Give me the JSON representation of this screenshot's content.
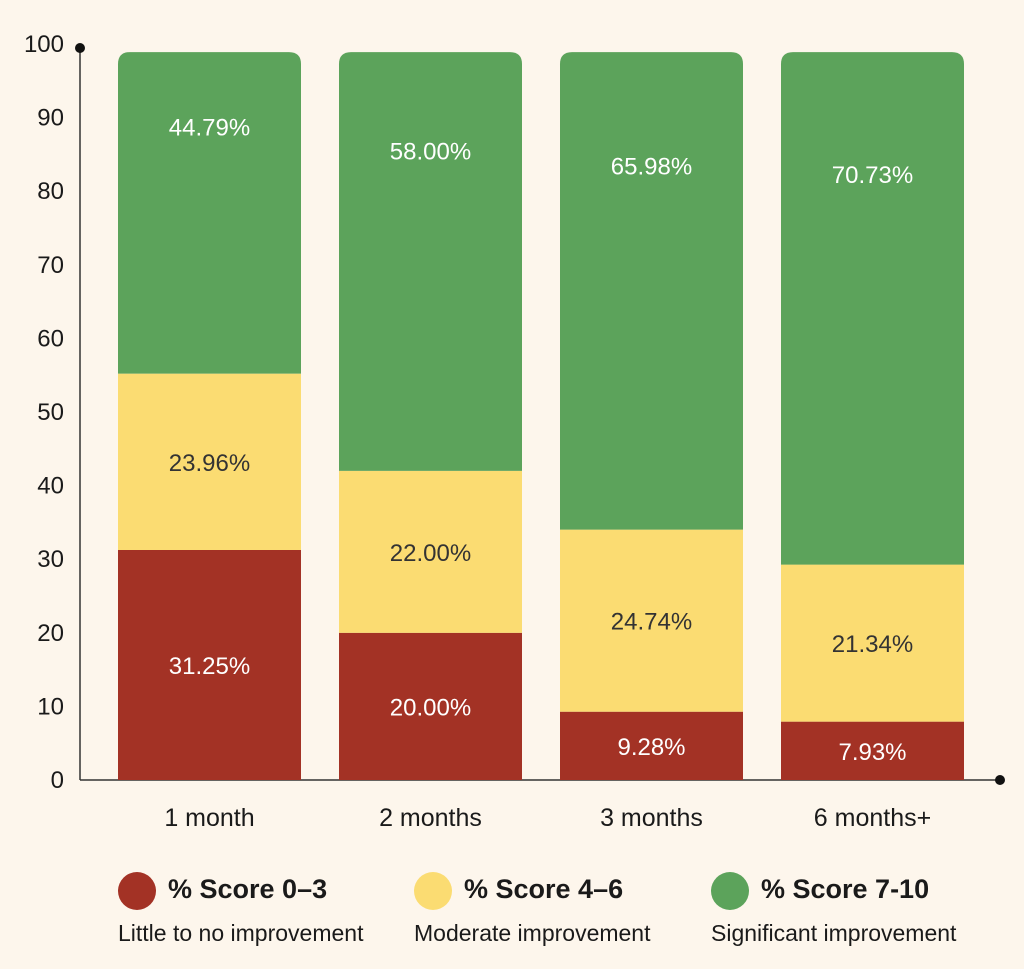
{
  "chart_data": {
    "type": "bar",
    "stacked": true,
    "categories": [
      "1 month",
      "2 months",
      "3 months",
      "6 months+"
    ],
    "series": [
      {
        "name": "% Score 0–3",
        "description": "Little to no improvement",
        "color": "#a33225",
        "label_color": "#ffffff",
        "values": [
          31.25,
          20.0,
          9.28,
          7.93
        ],
        "labels": [
          "31.25%",
          "20.00%",
          "9.28%",
          "7.93%"
        ]
      },
      {
        "name": "% Score 4–6",
        "description": "Moderate improvement",
        "color": "#fbdc72",
        "label_color": "#333333",
        "values": [
          23.96,
          22.0,
          24.74,
          21.34
        ],
        "labels": [
          "23.96%",
          "22.00%",
          "24.74%",
          "21.34%"
        ]
      },
      {
        "name": "% Score 7-10",
        "description": "Significant improvement",
        "color": "#5ca35b",
        "label_color": "#ffffff",
        "values": [
          44.79,
          58.0,
          65.98,
          70.73
        ],
        "labels": [
          "44.79%",
          "58.00%",
          "65.98%",
          "70.73%"
        ]
      }
    ],
    "ylim": [
      0,
      100
    ],
    "yticks": [
      "0",
      "10",
      "20",
      "30",
      "40",
      "50",
      "60",
      "70",
      "80",
      "90",
      "100"
    ],
    "title": "",
    "xlabel": "",
    "ylabel": "",
    "grid": false,
    "legend": "bottom"
  },
  "colors": {
    "background": "#fdf6ec",
    "axis": "#333333"
  }
}
